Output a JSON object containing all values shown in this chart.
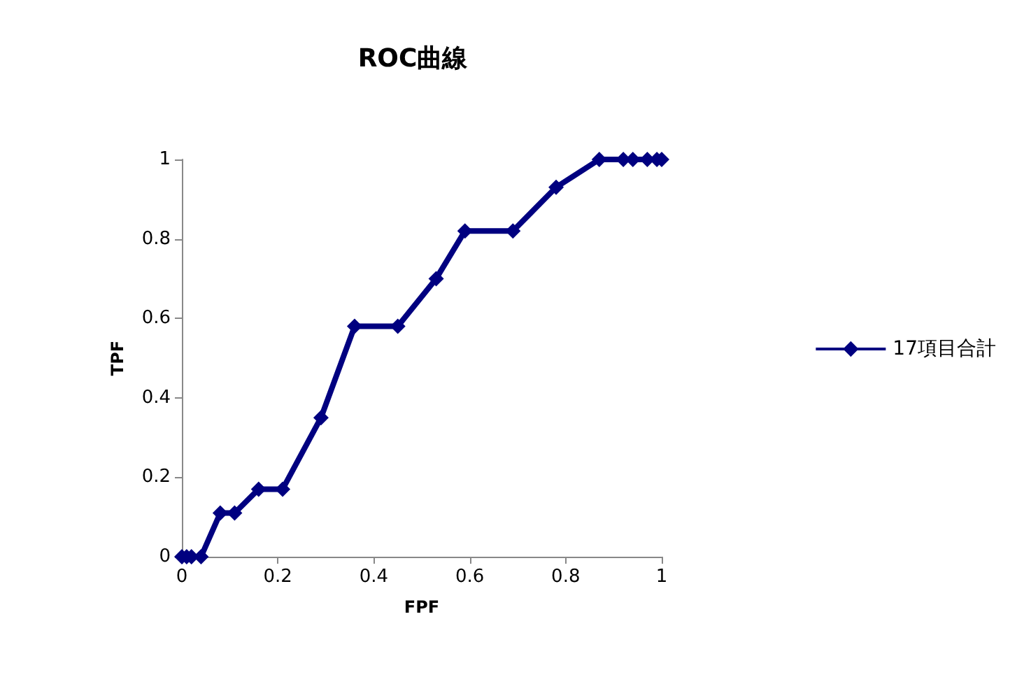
{
  "chart_data": {
    "type": "line",
    "title": "ROC曲線",
    "xlabel": "FPF",
    "ylabel": "TPF",
    "series": [
      {
        "name": "17項目合計",
        "color": "#000080",
        "x": [
          0,
          0.01,
          0.02,
          0.04,
          0.08,
          0.11,
          0.16,
          0.21,
          0.29,
          0.36,
          0.45,
          0.53,
          0.59,
          0.69,
          0.78,
          0.87,
          0.92,
          0.94,
          0.97,
          0.99,
          1.0
        ],
        "values": [
          0,
          0,
          0,
          0,
          0.11,
          0.11,
          0.17,
          0.17,
          0.35,
          0.58,
          0.58,
          0.7,
          0.82,
          0.82,
          0.93,
          1,
          1,
          1,
          1,
          1,
          1
        ]
      }
    ],
    "xlim": [
      0,
      1
    ],
    "xticks": [
      0,
      0.2,
      0.4,
      0.6,
      0.8,
      1
    ],
    "ylim": [
      0,
      1
    ],
    "yticks": [
      0,
      0.2,
      0.4,
      0.6,
      0.8,
      1
    ],
    "grid": false,
    "legend": "right",
    "marker": "diamond",
    "line_style": "solid"
  }
}
